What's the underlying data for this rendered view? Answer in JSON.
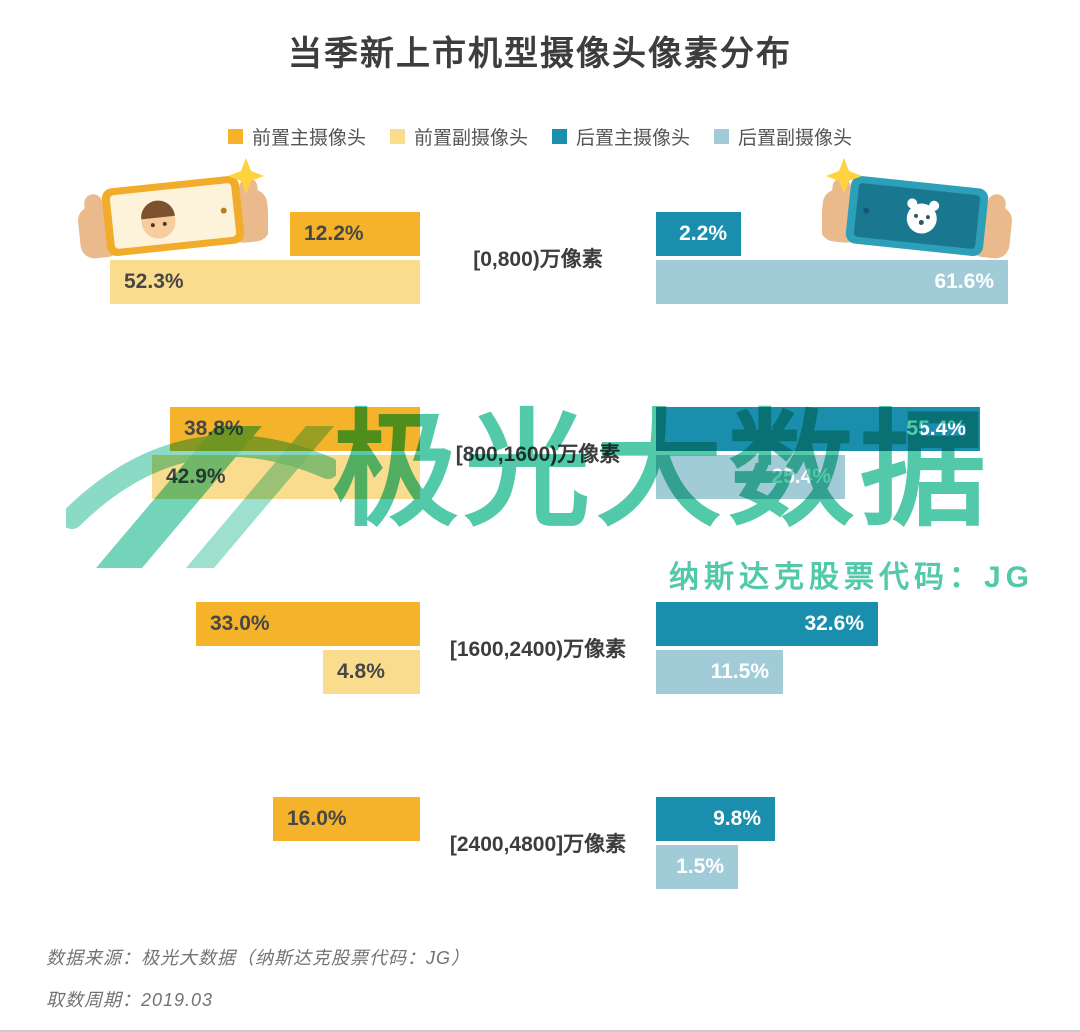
{
  "title": "当季新上市机型摄像头像素分布",
  "chart_data": {
    "type": "bar",
    "variant": "bidirectional-horizontal",
    "title": "当季新上市机型摄像头像素分布",
    "categories": [
      "[0,800)万像素",
      "[800,1600)万像素",
      "[1600,2400)万像素",
      "[2400,4800]万像素"
    ],
    "series": [
      {
        "name": "前置主摄像头",
        "key": "front-main",
        "side": "left",
        "row": "main",
        "color": "#F5B32B",
        "values": [
          12.2,
          38.8,
          33.0,
          16.0
        ]
      },
      {
        "name": "前置副摄像头",
        "key": "front-secondary",
        "side": "left",
        "row": "secondary",
        "color": "#FADC8F",
        "values": [
          52.3,
          42.9,
          4.8,
          null
        ]
      },
      {
        "name": "后置主摄像头",
        "key": "rear-main",
        "side": "right",
        "row": "main",
        "color": "#1A8FAD",
        "values": [
          2.2,
          55.4,
          32.6,
          9.8
        ]
      },
      {
        "name": "后置副摄像头",
        "key": "rear-secondary",
        "side": "right",
        "row": "secondary",
        "color": "#A2CBD8",
        "values": [
          61.6,
          25.4,
          11.5,
          1.5
        ]
      }
    ],
    "value_suffix": "%",
    "value_labels": true,
    "legend_position": "top",
    "axis": "none"
  },
  "watermark": {
    "text": "极光大数据",
    "subtext": "纳斯达克股票代码：JG",
    "color": "#3FC3A0"
  },
  "footer": {
    "source": "数据来源：极光大数据（纳斯达克股票代码：JG）",
    "period": "取数周期：2019.03"
  }
}
